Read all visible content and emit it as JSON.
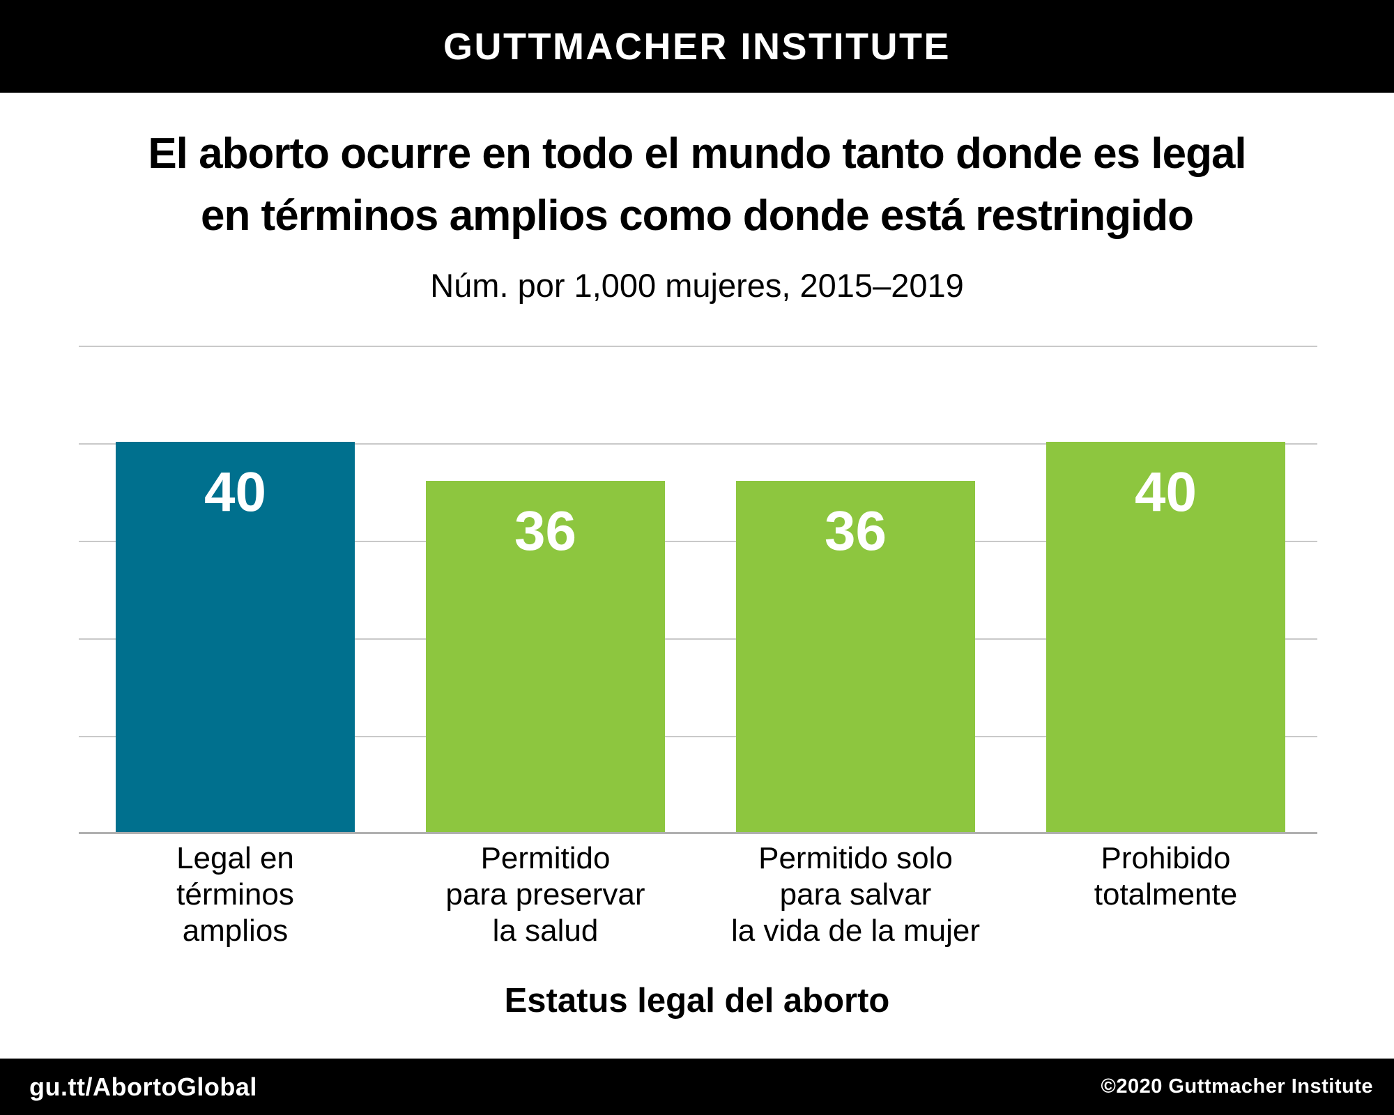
{
  "header": {
    "brand": "GUTTMACHER INSTITUTE"
  },
  "title": {
    "line1": "El aborto ocurre en todo el mundo tanto donde es legal",
    "line2": "en términos amplios como donde está restringido"
  },
  "subtitle": "Núm. por 1,000 mujeres, 2015–2019",
  "chart_data": {
    "type": "bar",
    "title": "El aborto ocurre en todo el mundo tanto donde es legal en términos amplios como donde está restringido",
    "subtitle": "Núm. por 1,000 mujeres, 2015–2019",
    "categories": [
      "Legal en términos amplios",
      "Permitido para preservar la salud",
      "Permitido solo para salvar la vida de la mujer",
      "Prohibido totalmente"
    ],
    "category_lines": [
      [
        "Legal en",
        "términos",
        "amplios"
      ],
      [
        "Permitido",
        "para preservar",
        "la salud"
      ],
      [
        "Permitido solo",
        "para salvar",
        "la vida de la mujer"
      ],
      [
        "Prohibido",
        "totalmente"
      ]
    ],
    "category_slugs": [
      "legal-en-terminos-amplios",
      "permitido-para-preservar-la-salud",
      "permitido-solo-para-salvar-la-vida-de-la-mujer",
      "prohibido-totalmente"
    ],
    "values": [
      40,
      36,
      36,
      40
    ],
    "bar_colors": [
      "#00708e",
      "#8dc63f",
      "#8dc63f",
      "#8dc63f"
    ],
    "value_label_color": "#ffffff",
    "xlabel": "Estatus legal del aborto",
    "ylabel": "Núm. por 1,000 mujeres",
    "ylim": [
      0,
      50
    ],
    "gridline_step": 10,
    "grid": true,
    "legend": false
  },
  "footer": {
    "left": "gu.tt/AbortoGlobal",
    "right": "©2020 Guttmacher Institute"
  },
  "colors": {
    "accent_teal": "#00708e",
    "accent_green": "#8dc63f",
    "header_bg": "#000000",
    "footer_bg": "#000000",
    "gridline": "#c9c9c9",
    "baseline": "#afafaf",
    "text": "#000000",
    "text_inverse": "#ffffff"
  }
}
